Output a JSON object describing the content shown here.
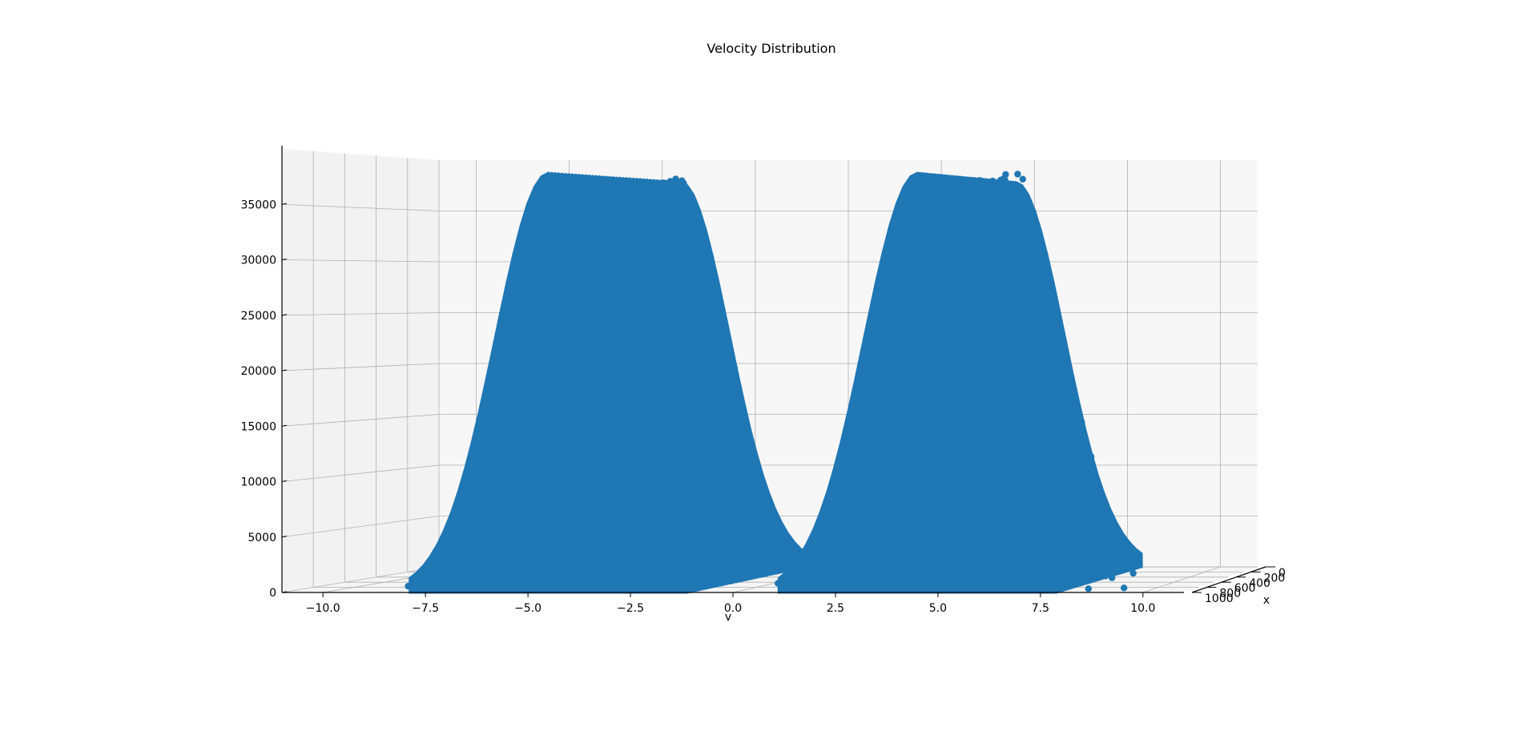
{
  "chart_data": {
    "type": "scatter",
    "projection": "3d",
    "title": "Velocity Distribution",
    "xlabel": "v",
    "ylabel": "x",
    "zlabel": "",
    "xlim": [
      -11,
      11
    ],
    "ylim": [
      0,
      1000
    ],
    "zlim": [
      0,
      40000
    ],
    "x_ticks": [
      "−10.0",
      "−7.5",
      "−5.0",
      "−2.5",
      "0.0",
      "2.5",
      "5.0",
      "7.5",
      "10.0"
    ],
    "y_ticks": [
      "0",
      "200",
      "400",
      "600",
      "800",
      "1000"
    ],
    "z_ticks": [
      "0",
      "5000",
      "10000",
      "15000",
      "20000",
      "25000",
      "30000",
      "35000"
    ],
    "grid": true,
    "color": "#1f77b4",
    "series": [
      {
        "center_v": -4.5,
        "peak_count": 39000,
        "sigma_v": 1.3
      },
      {
        "center_v": 4.5,
        "peak_count": 39000,
        "sigma_v": 1.3
      }
    ],
    "note_style": "two Gaussian peaks smeared along x from 0 to 1000"
  }
}
